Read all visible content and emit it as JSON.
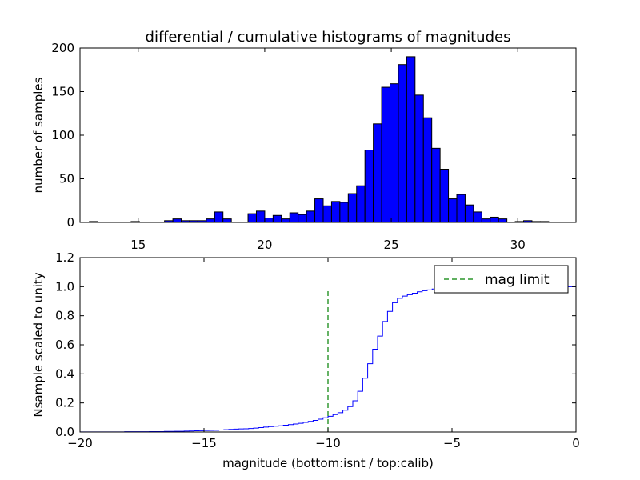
{
  "chart_data": [
    {
      "type": "bar",
      "title": "differential / cumulative histograms of magnitudes",
      "xlabel": "",
      "ylabel": "number of samples",
      "xlim": [
        12.7,
        32.3
      ],
      "ylim": [
        0,
        200
      ],
      "xticks": [
        15,
        20,
        25,
        30
      ],
      "yticks": [
        0,
        50,
        100,
        150,
        200
      ],
      "x_tick_position": "bottom",
      "bar_color": "#0000ff",
      "bin_width": 0.33,
      "bin_starts": [
        13.07,
        13.4,
        13.73,
        14.06,
        14.39,
        14.72,
        15.05,
        15.38,
        15.71,
        16.04,
        16.37,
        16.7,
        17.03,
        17.36,
        17.69,
        18.02,
        18.35,
        18.68,
        19.01,
        19.34,
        19.67,
        20.0,
        20.33,
        20.66,
        20.99,
        21.32,
        21.65,
        21.98,
        22.31,
        22.64,
        22.97,
        23.3,
        23.63,
        23.96,
        24.29,
        24.62,
        24.95,
        25.28,
        25.61,
        25.94,
        26.27,
        26.6,
        26.93,
        27.26,
        27.59,
        27.92,
        28.25,
        28.58,
        28.91,
        29.24,
        29.57,
        29.9,
        30.23,
        30.56,
        30.89
      ],
      "counts": [
        1,
        0,
        0,
        0,
        0,
        1,
        0,
        0,
        0,
        2,
        4,
        2,
        2,
        2,
        4,
        12,
        4,
        0,
        0,
        10,
        13,
        5,
        8,
        4,
        11,
        9,
        13,
        27,
        19,
        24,
        23,
        33,
        42,
        83,
        113,
        155,
        159,
        181,
        190,
        146,
        120,
        85,
        61,
        27,
        32,
        20,
        12,
        4,
        6,
        4,
        0,
        1,
        2,
        1,
        1
      ]
    },
    {
      "type": "line",
      "title": "",
      "xlabel": "magnitude (bottom:isnt / top:calib)",
      "ylabel": "Nsample scaled to unity",
      "xlim": [
        -20,
        0
      ],
      "ylim": [
        0,
        1.2
      ],
      "xticks": [
        -20,
        -15,
        -10,
        -5,
        0
      ],
      "xtick_labels": [
        "−20",
        "−15",
        "−10",
        "−5",
        "0"
      ],
      "yticks": [
        0.0,
        0.2,
        0.4,
        0.6,
        0.8,
        1.0,
        1.2
      ],
      "ytick_labels": [
        "0.0",
        "0.2",
        "0.4",
        "0.6",
        "0.8",
        "1.0",
        "1.2"
      ],
      "legend": {
        "position": "top-right",
        "entries": [
          "mag limit"
        ]
      },
      "series": [
        {
          "style": "steps",
          "color": "#0000ff",
          "x": [
            -20.0,
            -19.8,
            -19.6,
            -19.4,
            -19.2,
            -19.0,
            -18.8,
            -18.6,
            -18.4,
            -18.2,
            -18.0,
            -17.8,
            -17.6,
            -17.4,
            -17.2,
            -17.0,
            -16.8,
            -16.6,
            -16.4,
            -16.2,
            -16.0,
            -15.8,
            -15.6,
            -15.4,
            -15.2,
            -15.0,
            -14.8,
            -14.6,
            -14.4,
            -14.2,
            -14.0,
            -13.8,
            -13.6,
            -13.4,
            -13.2,
            -13.0,
            -12.8,
            -12.6,
            -12.4,
            -12.2,
            -12.0,
            -11.8,
            -11.6,
            -11.4,
            -11.2,
            -11.0,
            -10.8,
            -10.6,
            -10.4,
            -10.2,
            -10.0,
            -9.8,
            -9.6,
            -9.4,
            -9.2,
            -9.0,
            -8.8,
            -8.6,
            -8.4,
            -8.2,
            -8.0,
            -7.8,
            -7.6,
            -7.4,
            -7.2,
            -7.0,
            -6.8,
            -6.6,
            -6.4,
            -6.2,
            -6.0,
            -5.8,
            -5.6,
            -5.4,
            -5.2,
            -5.0,
            -4.8,
            -4.6,
            -4.4,
            -4.2,
            -4.0,
            -3.8,
            -3.6,
            -3.4,
            -3.2,
            -3.0,
            -2.8,
            -2.6,
            -2.4,
            -2.2,
            -2.0,
            -1.8,
            -1.6,
            -1.4,
            -1.2,
            -1.0,
            -0.8,
            -0.6,
            -0.4,
            -0.2,
            0.0
          ],
          "y": [
            0.001,
            0.001,
            0.001,
            0.001,
            0.001,
            0.001,
            0.001,
            0.001,
            0.001,
            0.002,
            0.002,
            0.002,
            0.002,
            0.002,
            0.003,
            0.003,
            0.003,
            0.004,
            0.004,
            0.005,
            0.005,
            0.006,
            0.007,
            0.008,
            0.009,
            0.01,
            0.011,
            0.012,
            0.014,
            0.016,
            0.018,
            0.02,
            0.021,
            0.022,
            0.024,
            0.027,
            0.03,
            0.034,
            0.037,
            0.04,
            0.043,
            0.047,
            0.051,
            0.055,
            0.06,
            0.066,
            0.073,
            0.08,
            0.088,
            0.098,
            0.108,
            0.12,
            0.133,
            0.15,
            0.175,
            0.215,
            0.28,
            0.37,
            0.47,
            0.57,
            0.66,
            0.76,
            0.83,
            0.89,
            0.92,
            0.935,
            0.945,
            0.955,
            0.965,
            0.972,
            0.978,
            0.984,
            0.988,
            0.991,
            0.993,
            0.995,
            0.996,
            0.997,
            0.998,
            0.998,
            0.999,
            0.999,
            0.999,
            0.999,
            1.0,
            1.0,
            1.0,
            1.0,
            1.0,
            1.0,
            1.0,
            1.0,
            1.0,
            1.0,
            1.0,
            1.0,
            1.0,
            1.0,
            1.0,
            1.0,
            1.0
          ]
        },
        {
          "name": "mag limit",
          "style": "dashed-vertical",
          "color": "#008000",
          "x": [
            -10,
            -10
          ],
          "y": [
            0,
            0.97
          ]
        }
      ]
    }
  ]
}
